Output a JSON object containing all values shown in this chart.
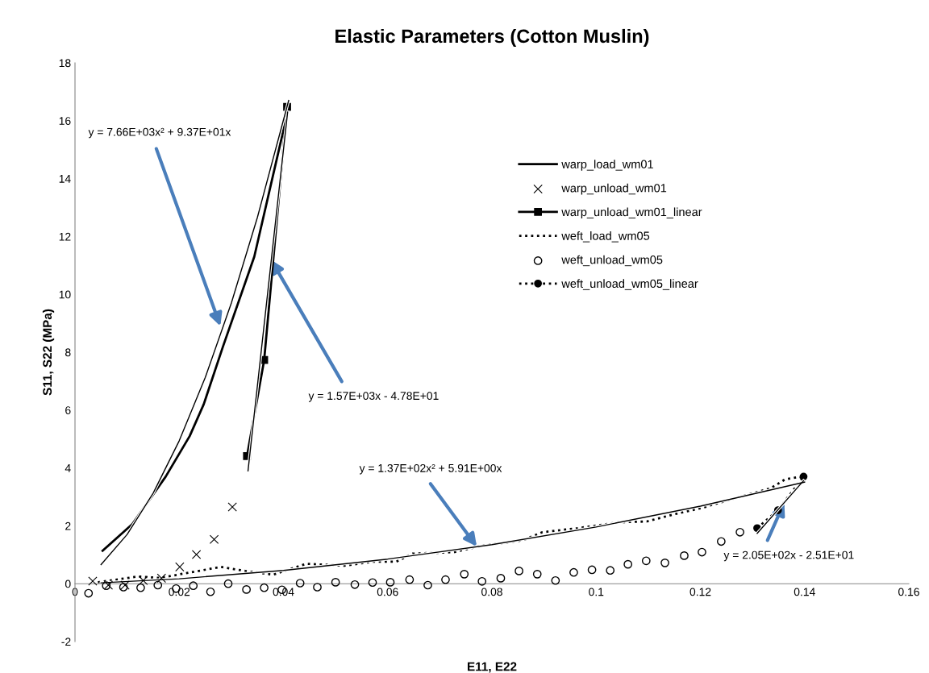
{
  "chart_data": {
    "type": "line",
    "title": "Elastic Parameters (Cotton Muslin)",
    "xlabel": "E11, E22",
    "ylabel": "S11, S22 (MPa)",
    "xlim": [
      0,
      0.16
    ],
    "xticks": [
      0,
      0.02,
      0.04,
      0.06,
      0.08,
      0.1,
      0.12,
      0.14,
      0.16
    ],
    "ylim": [
      -2,
      18
    ],
    "yticks": [
      -2,
      0,
      2,
      4,
      6,
      8,
      10,
      12,
      14,
      16,
      18
    ],
    "grid": false,
    "legend": "right",
    "series": [
      {
        "name": "warp_load_wm01",
        "color": "#000000",
        "marker": "none",
        "line_style": "solid",
        "x": [
          0.0053,
          0.011,
          0.0174,
          0.022,
          0.0247,
          0.0284,
          0.0344,
          0.0408
        ],
        "values": [
          1.14,
          2.06,
          3.7,
          5.1,
          6.2,
          8.2,
          11.3,
          16.3
        ]
      },
      {
        "name": "warp_unload_wm01",
        "type": "scatter",
        "color": "#000000",
        "marker": "cross",
        "x": [
          0.0034,
          0.0064,
          0.0096,
          0.0131,
          0.0166,
          0.0201,
          0.0233,
          0.0267,
          0.0302
        ],
        "values": [
          0.09,
          -0.05,
          -0.05,
          0.11,
          0.19,
          0.58,
          1.01,
          1.53,
          2.65
        ]
      },
      {
        "name": "warp_unload_wm01_linear",
        "color": "#000000",
        "marker": "square",
        "line_style": "solid",
        "x": [
          0.033,
          0.0363,
          0.0407
        ],
        "values": [
          4.41,
          7.73,
          16.48
        ]
      },
      {
        "name": "weft_load_wm05",
        "color": "#000000",
        "marker": "none",
        "line_style": "dotted",
        "x": [
          0.0044,
          0.0121,
          0.0163,
          0.028,
          0.0327,
          0.038,
          0.0444,
          0.0517,
          0.0571,
          0.0616,
          0.0648,
          0.0727,
          0.078,
          0.0859,
          0.0897,
          0.0965,
          0.1044,
          0.1097,
          0.115,
          0.1203,
          0.1256,
          0.1335,
          0.1362,
          0.1389,
          0.14
        ],
        "values": [
          0.05,
          0.25,
          0.2,
          0.58,
          0.44,
          0.31,
          0.69,
          0.62,
          0.76,
          0.76,
          1.04,
          1.09,
          1.31,
          1.5,
          1.78,
          1.92,
          2.12,
          2.15,
          2.4,
          2.62,
          2.9,
          3.3,
          3.6,
          3.69,
          3.65
        ]
      },
      {
        "name": "weft_unload_wm05",
        "type": "scatter",
        "color": "#000000",
        "marker": "circle",
        "x": [
          0.0026,
          0.006,
          0.0093,
          0.0126,
          0.0159,
          0.0194,
          0.0227,
          0.026,
          0.0294,
          0.0329,
          0.0363,
          0.0397,
          0.0432,
          0.0465,
          0.05,
          0.0537,
          0.0571,
          0.0605,
          0.0642,
          0.0677,
          0.0711,
          0.0747,
          0.0781,
          0.0817,
          0.0852,
          0.0887,
          0.0922,
          0.0957,
          0.0992,
          0.1027,
          0.1061,
          0.1096,
          0.1132,
          0.1169,
          0.1203,
          0.124,
          0.1276
        ],
        "values": [
          -0.33,
          -0.07,
          -0.12,
          -0.14,
          -0.05,
          -0.17,
          -0.07,
          -0.28,
          0.0,
          -0.2,
          -0.14,
          -0.21,
          0.02,
          -0.12,
          0.05,
          -0.03,
          0.04,
          0.05,
          0.14,
          -0.05,
          0.14,
          0.33,
          0.08,
          0.19,
          0.44,
          0.33,
          0.11,
          0.39,
          0.48,
          0.46,
          0.67,
          0.79,
          0.72,
          0.97,
          1.09,
          1.46,
          1.78
        ]
      },
      {
        "name": "weft_unload_wm05_linear",
        "color": "#000000",
        "marker": "circle",
        "line_style": "dotted",
        "x": [
          0.1309,
          0.1349,
          0.1398
        ],
        "values": [
          1.92,
          2.54,
          3.7
        ]
      },
      {
        "type": "line",
        "color": "#000000",
        "marker": "none",
        "line_style": "solid",
        "x": [
          0.005,
          0.01,
          0.015,
          0.02,
          0.025,
          0.03,
          0.035,
          0.041
        ],
        "values": [
          0.66,
          1.7,
          3.13,
          4.94,
          7.13,
          9.7,
          12.66,
          16.7
        ]
      },
      {
        "type": "line",
        "color": "#000000",
        "marker": "none",
        "line_style": "solid",
        "x": [
          0.0332,
          0.0408
        ],
        "values": [
          3.9,
          16.3
        ]
      },
      {
        "type": "line",
        "color": "#000000",
        "marker": "none",
        "line_style": "solid",
        "x": [
          0.005,
          0.02,
          0.04,
          0.06,
          0.08,
          0.1,
          0.12,
          0.14
        ],
        "values": [
          0.03,
          0.17,
          0.46,
          0.85,
          1.35,
          1.96,
          2.68,
          3.51
        ]
      },
      {
        "type": "line",
        "color": "#000000",
        "marker": "none",
        "line_style": "solid",
        "x": [
          0.1309,
          0.1398
        ],
        "values": [
          1.74,
          3.56
        ]
      }
    ],
    "annotations": [
      {
        "text": "y = 7.66E+03x² + 9.37E+01x",
        "x": 0.0279,
        "y": 8.9
      },
      {
        "text": "y = 1.57E+03x - 4.78E+01",
        "x": 0.0376,
        "y": 11.2
      },
      {
        "text": "y = 1.37E+02x² + 5.91E+00x",
        "x": 0.0771,
        "y": 1.28
      },
      {
        "text": "y = 2.05E+02x - 2.51E+01",
        "x": 0.1361,
        "y": 2.81
      }
    ]
  }
}
